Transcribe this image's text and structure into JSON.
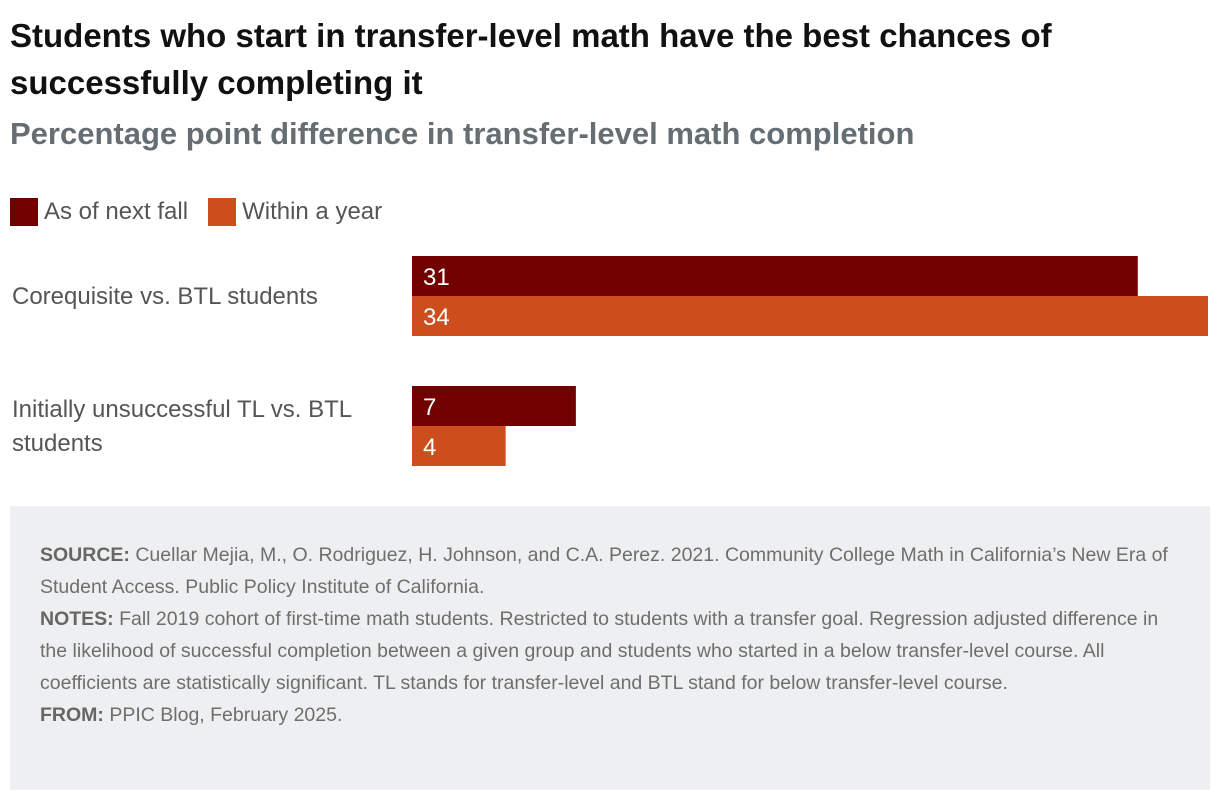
{
  "header": {
    "title": "Students who start in transfer-level math have the best chances of successfully completing it",
    "subtitle": "Percentage point difference in transfer-level math completion"
  },
  "colors": {
    "as_of_next_fall": "#730000",
    "within_a_year": "#cd4e1d"
  },
  "chart_data": {
    "type": "bar",
    "orientation": "horizontal",
    "title": "Students who start in transfer-level math have the best chances of successfully completing it",
    "subtitle": "Percentage point difference in transfer-level math completion",
    "categories": [
      [
        "Corequisite vs. BTL students"
      ],
      [
        "Initially unsuccessful TL vs. BTL",
        "students"
      ]
    ],
    "series": [
      {
        "name": "As of next fall",
        "values": [
          31,
          7
        ]
      },
      {
        "name": "Within a year",
        "values": [
          34,
          4
        ]
      }
    ],
    "xlim": [
      0,
      34
    ],
    "grid": false,
    "legend": "top-left",
    "data_labels": "inside-left"
  },
  "footer": {
    "source_label": "SOURCE:",
    "source_text": "Cuellar Mejia, M., O. Rodriguez, H. Johnson, and C.A. Perez. 2021. Community College Math in California’s New Era of Student Access. Public Policy Institute of California.",
    "notes_label": "NOTES:",
    "notes_text": "Fall 2019 cohort of first-time math students. Restricted to students with a transfer goal. Regression adjusted difference in the likelihood of successful completion between a given group and students who started in a below transfer-level course. All coefficients are statistically significant. TL stands for transfer-level and BTL stand for below transfer-level course.",
    "from_label": "FROM:",
    "from_text": "PPIC Blog, February 2025."
  }
}
